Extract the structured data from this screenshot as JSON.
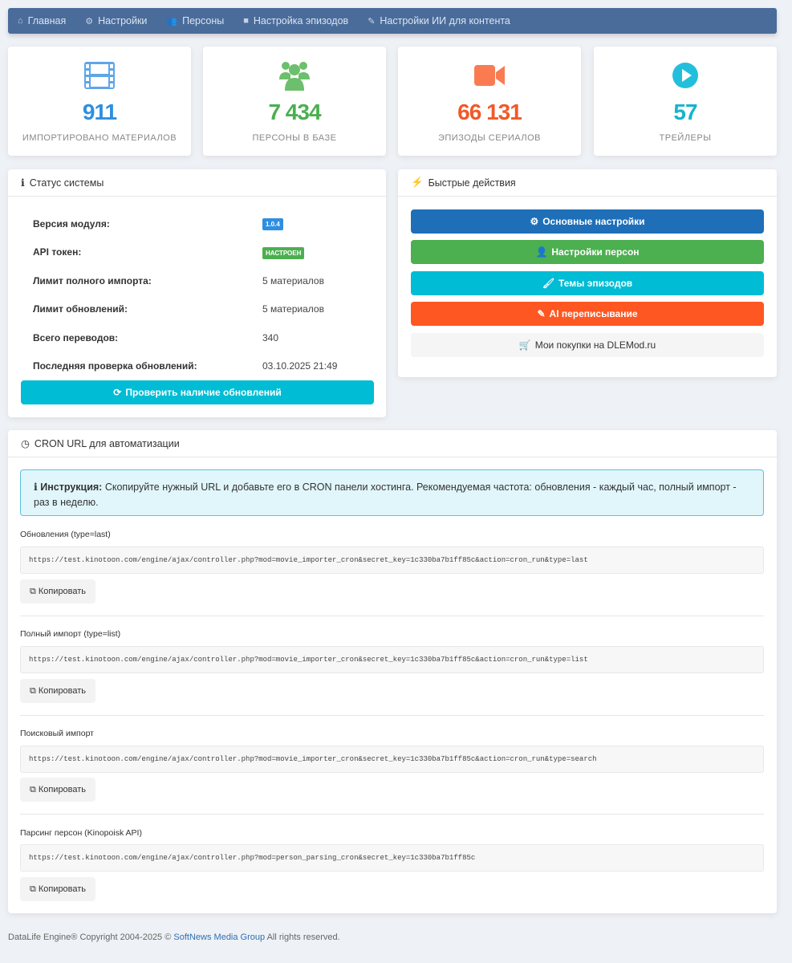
{
  "nav": [
    {
      "icon": "home-icon",
      "label": "Главная"
    },
    {
      "icon": "cogs-icon",
      "label": "Настройки"
    },
    {
      "icon": "users-icon",
      "label": "Персоны"
    },
    {
      "icon": "video-icon",
      "label": "Настройка эпизодов"
    },
    {
      "icon": "edit-icon",
      "label": "Настройки ИИ для контента"
    }
  ],
  "stats": [
    {
      "icon": "film-icon",
      "value": "911",
      "label": "ИМПОРТИРОВАНО МАТЕРИАЛОВ",
      "color": "#2f8fe0"
    },
    {
      "icon": "users-icon",
      "value": "7 434",
      "label": "ПЕРСОНЫ В БАЗЕ",
      "color": "#4caf50"
    },
    {
      "icon": "video-camera-icon",
      "value": "66 131",
      "label": "ЭПИЗОДЫ СЕРИАЛОВ",
      "color": "#f05a28"
    },
    {
      "icon": "play-circle-icon",
      "value": "57",
      "label": "ТРЕЙЛЕРЫ",
      "color": "#17b3cf"
    }
  ],
  "status": {
    "title": "Статус системы",
    "rows": [
      {
        "label": "Версия модуля:",
        "value": "1.0.4"
      },
      {
        "label": "API токен:",
        "value": "НАСТРОЕН"
      },
      {
        "label": "Лимит полного импорта:",
        "value": "5 материалов"
      },
      {
        "label": "Лимит обновлений:",
        "value": "5 материалов"
      },
      {
        "label": "Всего переводов:",
        "value": "340"
      },
      {
        "label": "Последняя проверка обновлений:",
        "value": "03.10.2025 21:49"
      }
    ],
    "check_button": "Проверить наличие обновлений"
  },
  "quick": {
    "title": "Быстрые действия",
    "buttons": [
      {
        "label": "Основные настройки",
        "icon": "cogs-icon",
        "color": "#1e6fb8"
      },
      {
        "label": "Настройки персон",
        "icon": "user-icon",
        "color": "#4caf50"
      },
      {
        "label": "Темы эпизодов",
        "icon": "brush-icon",
        "color": "#00bcd4"
      },
      {
        "label": "AI переписывание",
        "icon": "edit-icon",
        "color": "#ff5722"
      },
      {
        "label": "Мои покупки на DLEMod.ru",
        "icon": "cart-icon",
        "color": "#f5f5f5"
      }
    ]
  },
  "cron": {
    "title": "CRON URL для автоматизации",
    "alert_bold": "Инструкция:",
    "alert_text": " Скопируйте нужный URL и добавьте его в CRON панели хостинга. Рекомендуемая частота: обновления - каждый час, полный импорт - раз в неделю.",
    "copy_label": "Копировать",
    "items": [
      {
        "label": "Обновления (type=last)",
        "url": "https://test.kinotoon.com/engine/ajax/controller.php?mod=movie_importer_cron&secret_key=1c330ba7b1ff85c&action=cron_run&type=last"
      },
      {
        "label": "Полный импорт (type=list)",
        "url": "https://test.kinotoon.com/engine/ajax/controller.php?mod=movie_importer_cron&secret_key=1c330ba7b1ff85c&action=cron_run&type=list"
      },
      {
        "label": "Поисковый импорт",
        "url": "https://test.kinotoon.com/engine/ajax/controller.php?mod=movie_importer_cron&secret_key=1c330ba7b1ff85c&action=cron_run&type=search"
      },
      {
        "label": "Парсинг персон (Kinopoisk API)",
        "url": "https://test.kinotoon.com/engine/ajax/controller.php?mod=person_parsing_cron&secret_key=1c330ba7b1ff85c"
      }
    ]
  },
  "footer": {
    "prefix": "DataLife Engine® Copyright 2004-2025 ©",
    "link": "SoftNews Media Group",
    "suffix": "All rights reserved."
  }
}
